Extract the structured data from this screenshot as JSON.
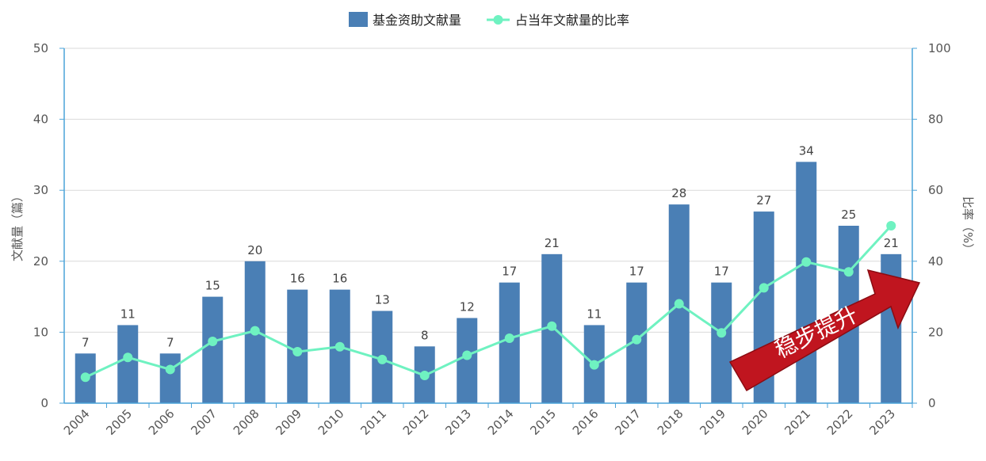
{
  "chart_data": {
    "type": "bar",
    "categories": [
      "2004",
      "2005",
      "2006",
      "2007",
      "2008",
      "2009",
      "2010",
      "2011",
      "2012",
      "2013",
      "2014",
      "2015",
      "2016",
      "2017",
      "2018",
      "2019",
      "2020",
      "2021",
      "2022",
      "2023"
    ],
    "series": [
      {
        "name": "基金资助文献量",
        "type": "bar",
        "axis": "left",
        "values": [
          7,
          11,
          7,
          15,
          20,
          16,
          16,
          13,
          8,
          12,
          17,
          21,
          11,
          17,
          28,
          17,
          27,
          34,
          25,
          21
        ]
      },
      {
        "name": "占当年文献量的比率",
        "type": "line",
        "axis": "right",
        "values": [
          7.3,
          12.9,
          9.5,
          17.4,
          20.4,
          14.5,
          15.9,
          12.3,
          7.8,
          13.5,
          18.3,
          21.7,
          10.8,
          17.9,
          28.0,
          19.8,
          32.5,
          39.8,
          37.0,
          50.0
        ]
      }
    ],
    "ylabel": "文献量（篇）",
    "y2label": "比率（%）",
    "ylim": [
      0,
      50
    ],
    "y2lim": [
      0,
      100
    ],
    "yticks": [
      "0",
      "10",
      "20",
      "30",
      "40",
      "50"
    ],
    "y2ticks": [
      "0",
      "20",
      "40",
      "60",
      "80",
      "100"
    ],
    "grid": true,
    "legend_position": "top-center",
    "annotation": "稳步提升",
    "colors": {
      "bar": "#4a7fb5",
      "line": "#6ff2c1",
      "arrow": "#c0151f",
      "axis": "#4aa3d8",
      "grid": "#d9d9d9"
    }
  }
}
